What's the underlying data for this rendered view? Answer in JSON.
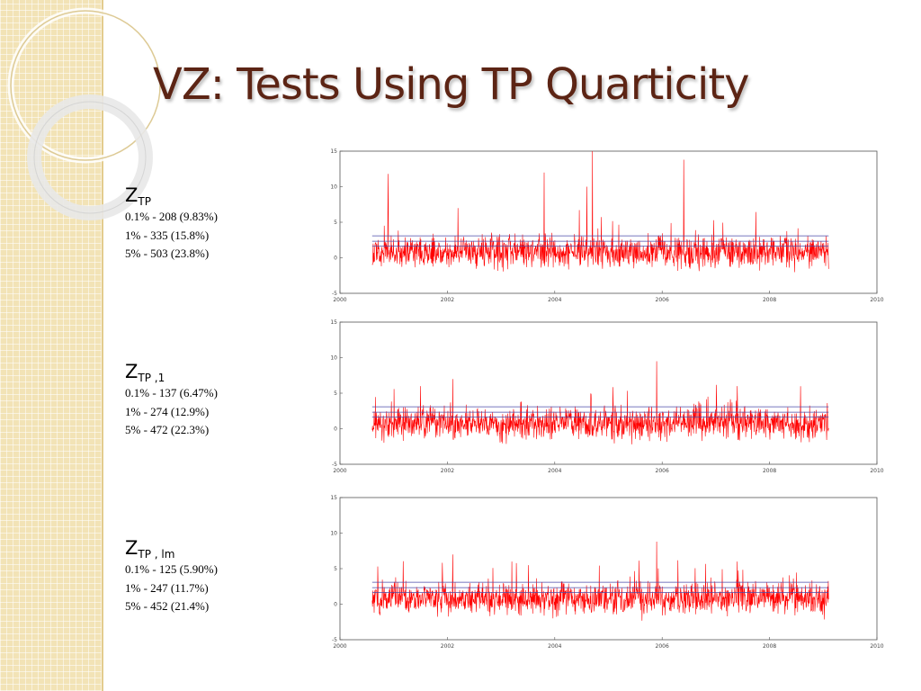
{
  "title": "VZ: Tests Using TP Quarticity",
  "theme": {
    "title_color": "#5c2414",
    "strip_color": "#f2e3b6",
    "series_color": "#ff0000",
    "threshold_color": "#4a4aa8"
  },
  "panels": [
    {
      "symbol": "Z",
      "subscript": "TP",
      "lines": [
        "0.1% - 208 (9.83%)",
        "1% - 335 (15.8%)",
        "5% - 503 (23.8%)"
      ]
    },
    {
      "symbol": "Z",
      "subscript": "TP ,1",
      "lines": [
        "0.1% - 137 (6.47%)",
        "1% - 274 (12.9%)",
        "5%  - 472 (22.3%)"
      ]
    },
    {
      "symbol": "Z",
      "subscript": "TP , lm",
      "lines": [
        "0.1% - 125 (5.90%)",
        "1% -  247 (11.7%)",
        "5% - 452 (21.4%)"
      ]
    }
  ],
  "chart_data": [
    {
      "type": "line",
      "xlim": [
        2000,
        2010
      ],
      "ylim": [
        -5,
        15
      ],
      "xticks": [
        "2000",
        "2002",
        "2004",
        "2006",
        "2008",
        "2010"
      ],
      "yticks": [
        "-5",
        "0",
        "5",
        "10",
        "15"
      ],
      "x_range": [
        2000.6,
        2009.1
      ],
      "thresholds": [
        1.65,
        2.33,
        3.09
      ],
      "spikes": [
        {
          "x": 2000.9,
          "y": 11.8
        },
        {
          "x": 2003.8,
          "y": 12
        },
        {
          "x": 2004.7,
          "y": 15
        },
        {
          "x": 2006.4,
          "y": 13.8
        },
        {
          "x": 2002.2,
          "y": 7
        },
        {
          "x": 2004.6,
          "y": 10
        }
      ],
      "series_color": "#ff0000"
    },
    {
      "type": "line",
      "xlim": [
        2000,
        2010
      ],
      "ylim": [
        -5,
        15
      ],
      "xticks": [
        "2000",
        "2002",
        "2004",
        "2006",
        "2008",
        "2010"
      ],
      "yticks": [
        "-5",
        "0",
        "5",
        "10",
        "15"
      ],
      "x_range": [
        2000.6,
        2009.1
      ],
      "thresholds": [
        1.65,
        2.33,
        3.09
      ],
      "spikes": [
        {
          "x": 2005.9,
          "y": 9.5
        },
        {
          "x": 2002.1,
          "y": 7
        },
        {
          "x": 2001.5,
          "y": 6
        },
        {
          "x": 2007.4,
          "y": 6
        }
      ],
      "series_color": "#ff0000"
    },
    {
      "type": "line",
      "xlim": [
        2000,
        2010
      ],
      "ylim": [
        -5,
        15
      ],
      "xticks": [
        "2000",
        "2002",
        "2004",
        "2006",
        "2008",
        "2010"
      ],
      "yticks": [
        "-5",
        "0",
        "5",
        "10",
        "15"
      ],
      "x_range": [
        2000.6,
        2009.1
      ],
      "thresholds": [
        1.65,
        2.33,
        3.09
      ],
      "spikes": [
        {
          "x": 2005.9,
          "y": 8.8
        },
        {
          "x": 2002.1,
          "y": 7
        },
        {
          "x": 2003.2,
          "y": 6
        },
        {
          "x": 2007.4,
          "y": 6
        }
      ],
      "series_color": "#ff0000"
    }
  ]
}
